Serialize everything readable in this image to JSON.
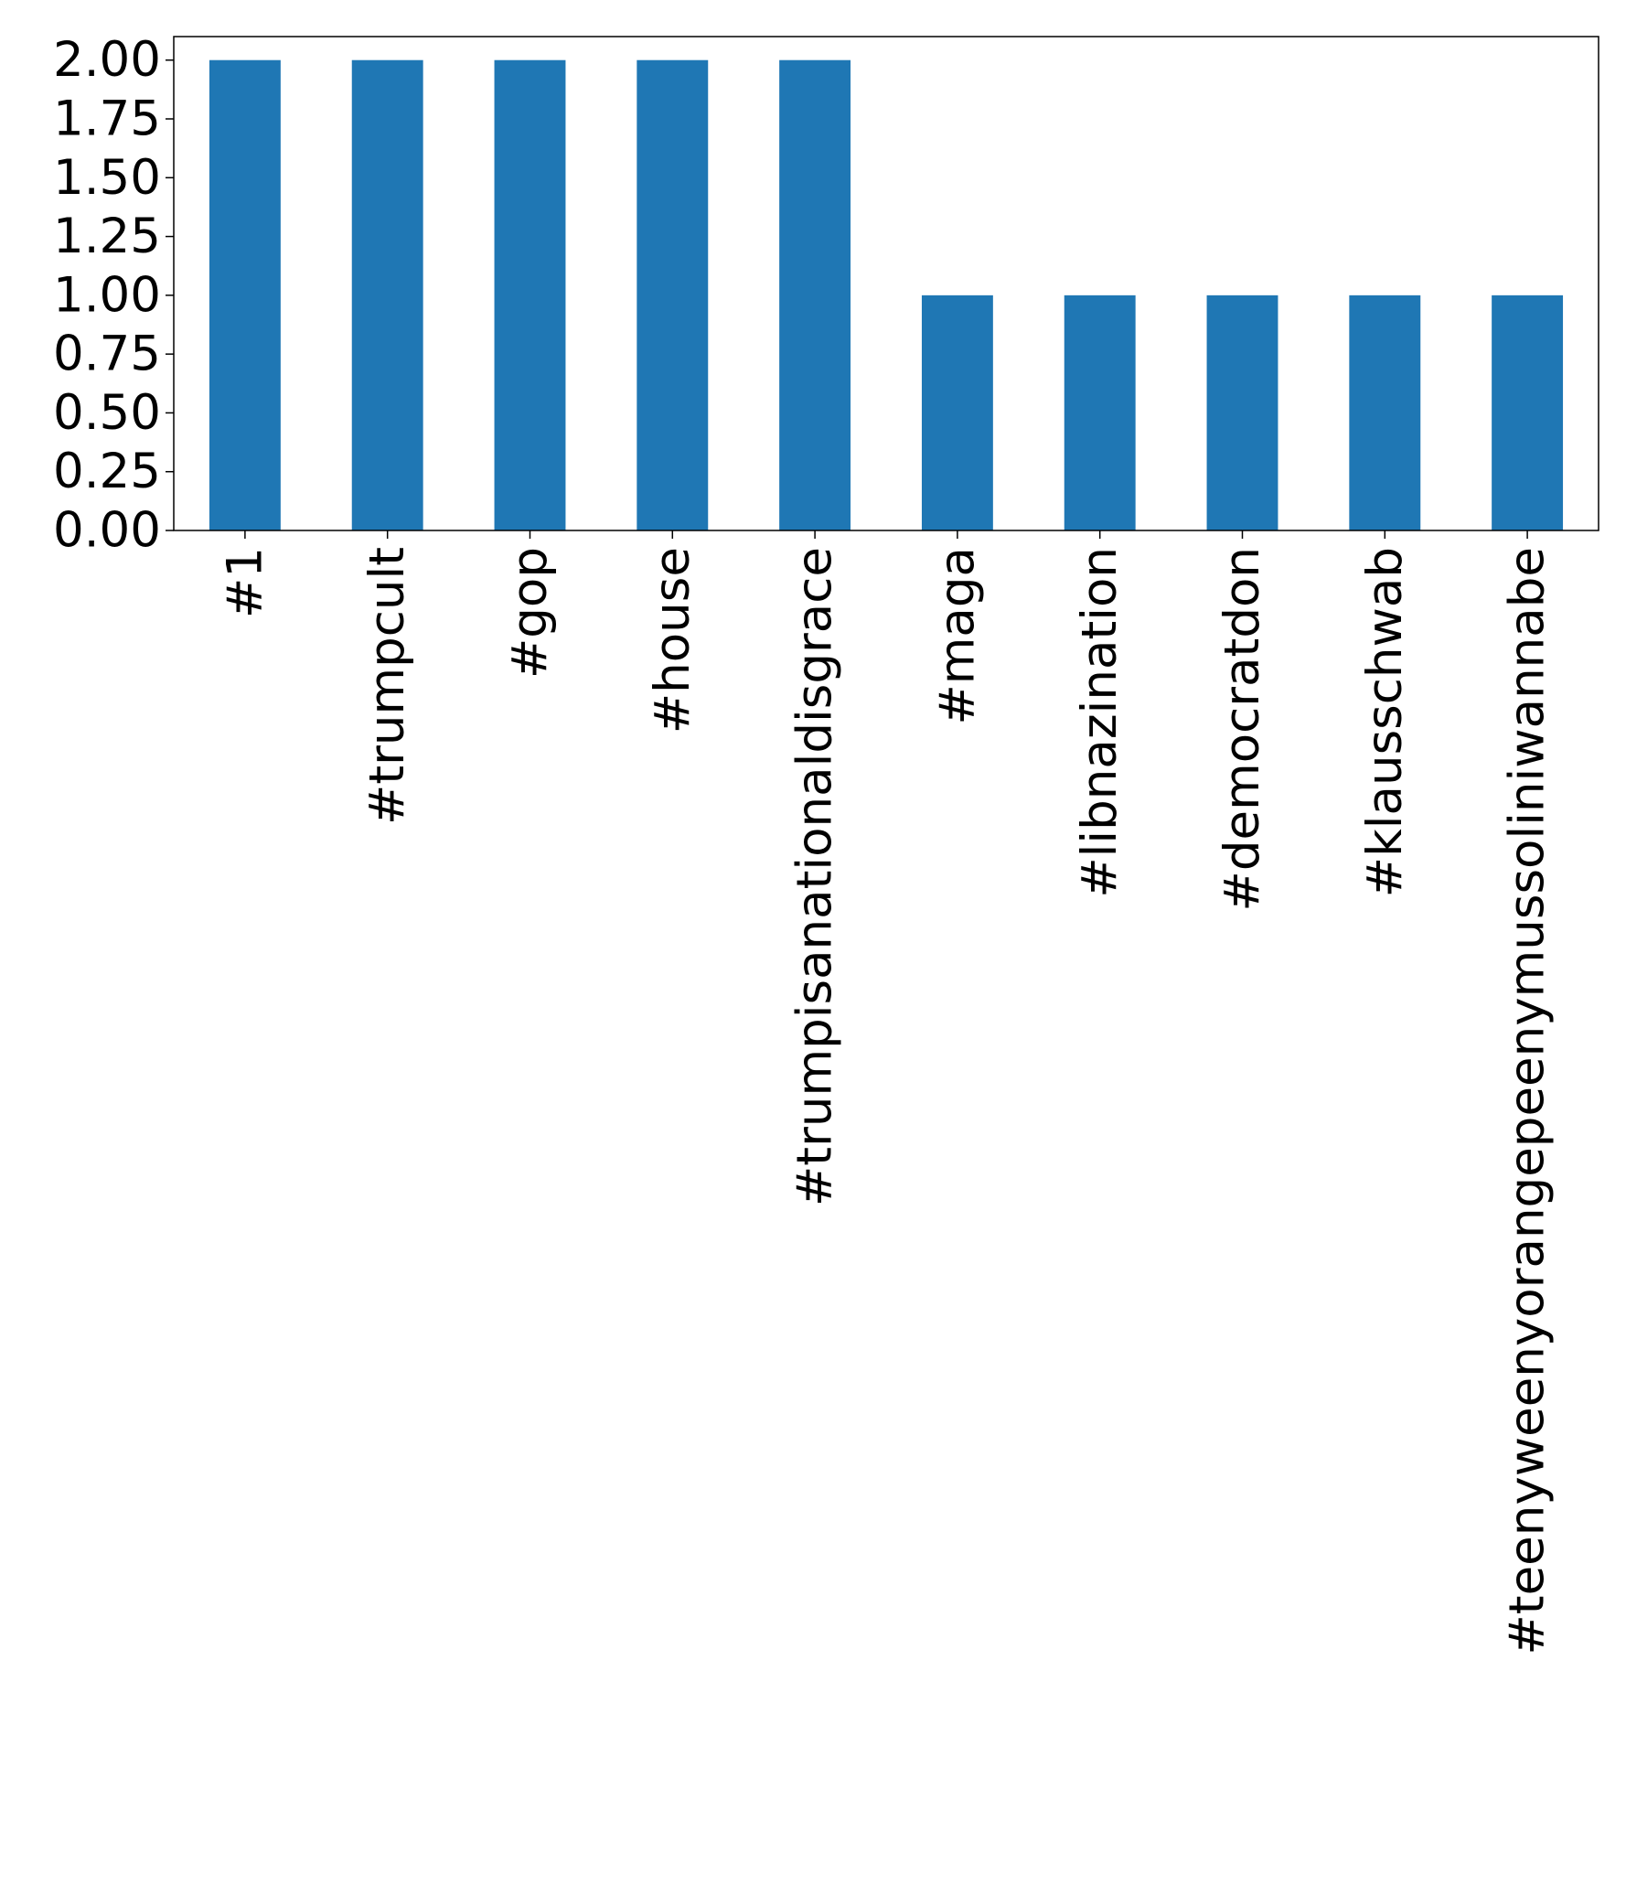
{
  "chart_data": {
    "type": "bar",
    "title": "",
    "xlabel": "",
    "ylabel": "",
    "categories": [
      "#1",
      "#trumpcult",
      "#gop",
      "#house",
      "#trumpisanationaldisgrace",
      "#maga",
      "#libnazination",
      "#democratdon",
      "#klausschwab",
      "#teenyweenyorangepeenymussoliniwannabe"
    ],
    "values": [
      2,
      2,
      2,
      2,
      2,
      1,
      1,
      1,
      1,
      1
    ],
    "ylim": [
      0,
      2.1
    ],
    "yticks": [
      "0.00",
      "0.25",
      "0.50",
      "0.75",
      "1.00",
      "1.25",
      "1.50",
      "1.75",
      "2.00"
    ],
    "ytick_values": [
      0,
      0.25,
      0.5,
      0.75,
      1.0,
      1.25,
      1.5,
      1.75,
      2.0
    ],
    "bar_color": "#1f77b4",
    "grid": false,
    "legend": "none"
  }
}
